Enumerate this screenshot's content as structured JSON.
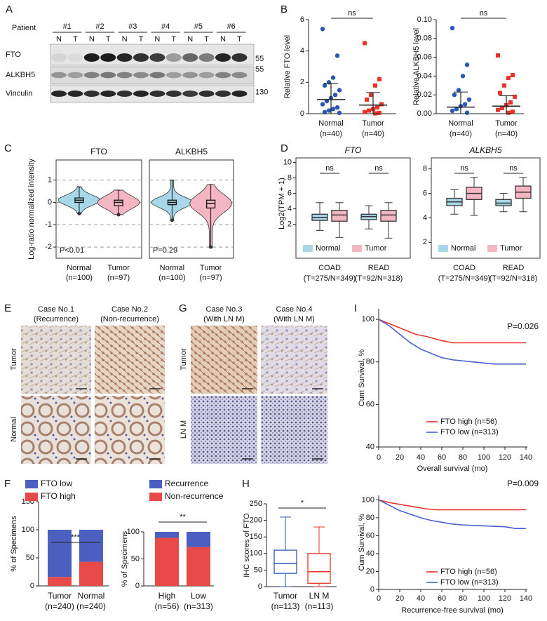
{
  "A": {
    "label": "A",
    "patient_header": "Patient",
    "patients": [
      "#1",
      "#2",
      "#3",
      "#4",
      "#5",
      "#6"
    ],
    "lanes": [
      "N",
      "T"
    ],
    "proteins": [
      "FTO",
      "ALKBH5",
      "Vinculin"
    ],
    "markers": [
      55,
      55,
      130
    ]
  },
  "B": {
    "label": "B",
    "plots": [
      {
        "ylabel": "Relative FTO level",
        "ylim": [
          0,
          6
        ],
        "yticks": [
          0,
          2,
          4,
          6
        ],
        "sig": "ns",
        "groups": [
          {
            "name": "Normal",
            "note": "(n=40)",
            "color": "#2a56b8",
            "marker": "circle",
            "mean": 0.9,
            "sd": 1.05,
            "points": [
              5.4,
              3.7,
              2.3,
              2.0,
              1.8,
              1.5,
              1.2,
              1.0,
              0.8,
              0.6,
              0.4,
              0.3,
              0.2,
              0.1,
              0.05
            ]
          },
          {
            "name": "Tumor",
            "note": "(n=40)",
            "color": "#e8342a",
            "marker": "square",
            "mean": 0.55,
            "sd": 0.8,
            "points": [
              4.5,
              2.2,
              1.8,
              1.2,
              0.9,
              0.6,
              0.4,
              0.3,
              0.2,
              0.1,
              0.05,
              0.02
            ]
          }
        ]
      },
      {
        "ylabel": "Relative ALKBH5 level",
        "ylim": [
          0,
          0.1
        ],
        "yticks": [
          {
            "value": 0,
            "label": "0.00"
          },
          0.02,
          0.04,
          0.06,
          0.08,
          {
            "value": 0.1,
            "label": "0.10"
          }
        ],
        "sig": "ns",
        "groups": [
          {
            "name": "Normal",
            "note": "(n=40)",
            "color": "#2a56b8",
            "marker": "circle",
            "mean": 0.007,
            "sd": 0.016,
            "points": [
              0.091,
              0.052,
              0.04,
              0.025,
              0.02,
              0.015,
              0.01,
              0.008,
              0.005,
              0.003,
              0.001
            ]
          },
          {
            "name": "Tumor",
            "note": "(n=40)",
            "color": "#e8342a",
            "marker": "square",
            "mean": 0.008,
            "sd": 0.011,
            "points": [
              0.062,
              0.041,
              0.038,
              0.03,
              0.022,
              0.018,
              0.012,
              0.009,
              0.006,
              0.004,
              0.002,
              0.001
            ]
          }
        ]
      }
    ]
  },
  "C": {
    "label": "C",
    "ylabel": "Log-ratio normalized intensity",
    "ylim": [
      -2.5,
      1.9
    ],
    "yticks": [
      -2,
      -1,
      0,
      1
    ],
    "plots": [
      {
        "title": "FTO",
        "pvalue": "P<0.01",
        "groups": [
          {
            "name": "Normal",
            "note": "(n=100)",
            "color": "#a8d8e8",
            "min": -0.5,
            "q1": 0,
            "median": 0.1,
            "q3": 0.2,
            "max": 0.7
          },
          {
            "name": "Tumor",
            "note": "(n=97)",
            "color": "#f4b6c2",
            "min": -0.55,
            "q1": -0.15,
            "median": 0,
            "q3": 0.1,
            "max": 0.55
          }
        ]
      },
      {
        "title": "ALKBH5",
        "pvalue": "P=0.29",
        "groups": [
          {
            "name": "Normal",
            "note": "(n=100)",
            "color": "#a8d8e8",
            "min": -0.8,
            "q1": -0.1,
            "median": 0,
            "q3": 0.1,
            "max": 1.0
          },
          {
            "name": "Tumor",
            "note": "(n=97)",
            "color": "#f4b6c2",
            "min": -2,
            "q1": -0.25,
            "median": -0.05,
            "q3": 0.1,
            "max": 0.8
          }
        ]
      }
    ]
  },
  "D": {
    "label": "D",
    "ylabel": "Log2(TPM + 1)",
    "plots": [
      {
        "title": "FTO",
        "ylim": [
          -2.4,
          10.6
        ],
        "yticks": [
          2,
          4,
          6,
          8,
          10
        ],
        "categories": [
          "COAD",
          "READ"
        ],
        "notes": [
          "(T=275/N=349)",
          "(T=92/N=318)"
        ],
        "sig": [
          "ns",
          "ns"
        ],
        "series": [
          {
            "name": "Normal",
            "color": "#a8d8e8",
            "boxes": [
              {
                "min": 1.2,
                "q1": 2.5,
                "median": 2.9,
                "q3": 3.3,
                "max": 4.8
              },
              {
                "min": 1.4,
                "q1": 2.6,
                "median": 3.0,
                "q3": 3.3,
                "max": 4.4
              }
            ]
          },
          {
            "name": "Tumor",
            "color": "#f4b6c2",
            "boxes": [
              {
                "min": 0.3,
                "q1": 2.4,
                "median": 3.2,
                "q3": 3.8,
                "max": 4.8
              },
              {
                "min": 0.2,
                "q1": 2.4,
                "median": 3.2,
                "q3": 3.8,
                "max": 4.8
              }
            ]
          }
        ]
      },
      {
        "title": "ALKBH5",
        "ylim": [
          0.7,
          8.9
        ],
        "yticks": [
          2,
          4,
          6,
          8
        ],
        "categories": [
          "COAD",
          "READ"
        ],
        "notes": [
          "(T=275/N=349)",
          "(T=92/N=318)"
        ],
        "sig": [
          "ns",
          "ns"
        ],
        "series": [
          {
            "name": "Normal",
            "color": "#a8d8e8",
            "boxes": [
              {
                "min": 4.3,
                "q1": 5.0,
                "median": 5.3,
                "q3": 5.6,
                "max": 6.3
              },
              {
                "min": 4.5,
                "q1": 5.0,
                "median": 5.2,
                "q3": 5.5,
                "max": 6.0
              }
            ]
          },
          {
            "name": "Tumor",
            "color": "#f4b6c2",
            "boxes": [
              {
                "min": 4.2,
                "q1": 5.5,
                "median": 6.0,
                "q3": 6.5,
                "max": 7.3
              },
              {
                "min": 4.5,
                "q1": 5.6,
                "median": 6.1,
                "q3": 6.6,
                "max": 7.3
              }
            ]
          }
        ]
      }
    ]
  },
  "E": {
    "label": "E",
    "columns": [
      [
        "Case No.1",
        "(Recurrence)"
      ],
      [
        "Case No.2",
        "(Non-recurrence)"
      ]
    ],
    "rows": [
      "Tumor",
      "Normal"
    ]
  },
  "G": {
    "label": "G",
    "columns": [
      [
        "Case No.3",
        "(With LN M)"
      ],
      [
        "Case No.4",
        "(With LN M)"
      ]
    ],
    "rows": [
      "Tumor",
      "LN M"
    ]
  },
  "F": {
    "label": "F",
    "plots": [
      {
        "ylabel": "% of Specimens",
        "ylim": [
          0,
          150
        ],
        "yticks": [
          0,
          50,
          100,
          150
        ],
        "categories": [
          "Tumor",
          "Normal"
        ],
        "notes": [
          "(n=240)",
          "(n=240)"
        ],
        "sig": "***",
        "series": [
          {
            "name": "FTO low",
            "color": "#4a5fbf",
            "values": [
              84,
              57
            ]
          },
          {
            "name": "FTO high",
            "color": "#e84a4a",
            "values": [
              16,
              43
            ]
          }
        ]
      },
      {
        "ylabel": "% of Specimens",
        "ylim": [
          0,
          100
        ],
        "yticks": [
          0,
          50,
          100
        ],
        "categories": [
          "High",
          "Low"
        ],
        "notes": [
          "(n=56)",
          "(n=313)"
        ],
        "sig": "**",
        "series": [
          {
            "name": "Recurrence",
            "color": "#4a5fbf",
            "values": [
              11,
              28
            ]
          },
          {
            "name": "Non-recurrence",
            "color": "#e84a4a",
            "values": [
              89,
              72
            ]
          }
        ]
      }
    ]
  },
  "H": {
    "label": "H",
    "ylabel": "IHC scores of FTO",
    "ylim": [
      0,
      250
    ],
    "yticks": [
      0,
      50,
      100,
      150,
      200,
      250
    ],
    "sig": "*",
    "categories": [
      "Tumor",
      "LN M"
    ],
    "notes": [
      "(n=113)",
      "(n=113)"
    ],
    "boxes": [
      {
        "color": "#2a56b8",
        "min": 0,
        "q1": 40,
        "median": 70,
        "q3": 110,
        "max": 210
      },
      {
        "color": "#e8342a",
        "min": 0,
        "q1": 10,
        "median": 45,
        "q3": 100,
        "max": 180
      }
    ]
  },
  "I": {
    "label": "I",
    "plots": [
      {
        "pvalue": "P=0.026",
        "ylabel": "Cum Survival, %",
        "xlabel": "Overall survival (mo)",
        "xlim": [
          0,
          140
        ],
        "xticks": [
          0,
          20,
          40,
          60,
          80,
          100,
          120,
          140
        ],
        "ylim": [
          40,
          105
        ],
        "yticks": [
          40,
          60,
          80,
          100
        ],
        "series": [
          {
            "name": "FTO high (n=56)",
            "color": "#e8342a",
            "x": [
              0,
              10,
              20,
              35,
              45,
              60,
              70,
              140
            ],
            "y": [
              100,
              98,
              96,
              93,
              92,
              90,
              89,
              89
            ]
          },
          {
            "name": "FTO low (n=313)",
            "color": "#4a5fcf",
            "x": [
              0,
              10,
              20,
              30,
              40,
              50,
              60,
              70,
              90,
              110,
              140
            ],
            "y": [
              100,
              97,
              93,
              89,
              86,
              84,
              82,
              81,
              80,
              79,
              79
            ]
          }
        ]
      },
      {
        "pvalue": "P=0.009",
        "ylabel": "Cum Survival, %",
        "xlabel": "Recurrence-free survival (mo)",
        "xlim": [
          0,
          140
        ],
        "xticks": [
          0,
          20,
          40,
          60,
          80,
          100,
          120,
          140
        ],
        "ylim": [
          0,
          105
        ],
        "yticks": [
          0,
          20,
          40,
          60,
          80,
          100
        ],
        "series": [
          {
            "name": "FTO high (n=56)",
            "color": "#e8342a",
            "x": [
              0,
              10,
              20,
              30,
              45,
              55,
              140
            ],
            "y": [
              100,
              97,
              95,
              93,
              90,
              89,
              89
            ]
          },
          {
            "name": "FTO low (n=313)",
            "color": "#4a5fcf",
            "x": [
              0,
              10,
              20,
              30,
              40,
              50,
              60,
              70,
              80,
              100,
              120,
              130,
              140
            ],
            "y": [
              100,
              94,
              88,
              84,
              80,
              77,
              75,
              73,
              72,
              71,
              70,
              68,
              68
            ]
          }
        ]
      }
    ]
  }
}
